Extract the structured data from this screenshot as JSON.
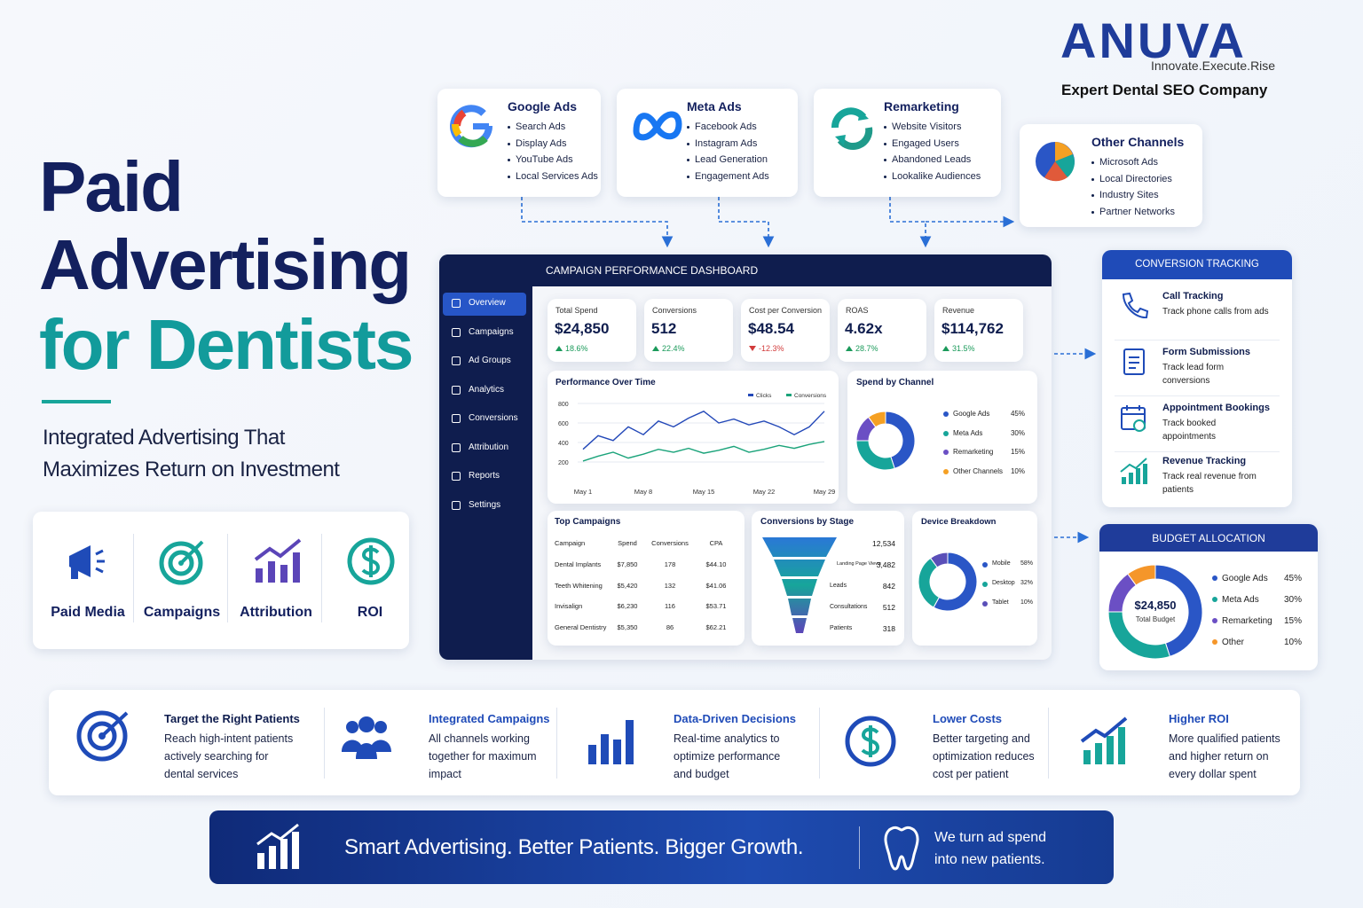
{
  "logo": {
    "brand": "ANUVA",
    "tagline": "Innovate.Execute.Rise",
    "subtitle": "Expert Dental SEO Company"
  },
  "hero": {
    "title": [
      "Paid",
      "Advertising",
      "for Dentists"
    ],
    "subtitle": [
      "Integrated Advertising That",
      "Maximizes Return on Investment"
    ]
  },
  "pillars": [
    "Paid Media",
    "Campaigns",
    "Attribution",
    "ROI"
  ],
  "channels": [
    {
      "title": "Google Ads",
      "items": [
        "Search Ads",
        "Display Ads",
        "YouTube Ads",
        "Local Services Ads"
      ]
    },
    {
      "title": "Meta Ads",
      "items": [
        "Facebook Ads",
        "Instagram Ads",
        "Lead Generation",
        "Engagement Ads"
      ]
    },
    {
      "title": "Remarketing",
      "items": [
        "Website Visitors",
        "Engaged Users",
        "Abandoned Leads",
        "Lookalike Audiences"
      ]
    },
    {
      "title": "Other Channels",
      "items": [
        "Microsoft Ads",
        "Local Directories",
        "Industry Sites",
        "Partner Networks"
      ]
    }
  ],
  "dashboard": {
    "title": "CAMPAIGN PERFORMANCE DASHBOARD",
    "nav": [
      "Overview",
      "Campaigns",
      "Ad Groups",
      "Analytics",
      "Conversions",
      "Attribution",
      "Reports",
      "Settings"
    ],
    "kpis": [
      {
        "label": "Total Spend",
        "value": "$24,850",
        "change": "18.6%"
      },
      {
        "label": "Conversions",
        "value": "512",
        "change": "22.4%"
      },
      {
        "label": "Cost per Conversion",
        "value": "$48.54",
        "change": "-12.3%"
      },
      {
        "label": "ROAS",
        "value": "4.62x",
        "change": "28.7%"
      },
      {
        "label": "Revenue",
        "value": "$114,762",
        "change": "31.5%"
      }
    ],
    "performance": {
      "type": "line",
      "title": "Performance Over Time",
      "categories": [
        "May 1",
        null,
        null,
        null,
        "May 8",
        null,
        null,
        null,
        "May 15",
        null,
        null,
        null,
        "May 22",
        null,
        null,
        null,
        "May 29"
      ],
      "series": [
        {
          "name": "Clicks",
          "color": "#2348b8",
          "values": [
            330,
            470,
            420,
            560,
            480,
            620,
            560,
            650,
            720,
            600,
            640,
            580,
            620,
            560,
            480,
            560,
            720
          ]
        },
        {
          "name": "Conversions",
          "color": "#1aa37a",
          "values": [
            210,
            260,
            300,
            240,
            280,
            330,
            300,
            340,
            290,
            320,
            360,
            300,
            330,
            370,
            340,
            380,
            410
          ]
        }
      ],
      "ylim": [
        0,
        900
      ],
      "yticks": [
        200,
        400,
        600,
        800
      ]
    },
    "spend": {
      "type": "pie",
      "title": "Spend by Channel",
      "labels": [
        "Google Ads",
        "Meta Ads",
        "Remarketing",
        "Other Channels"
      ],
      "values": [
        45,
        30,
        15,
        10
      ],
      "value_labels": [
        "45%",
        "30%",
        "15%",
        "10%"
      ],
      "colors": [
        "#2a56c6",
        "#17a59a",
        "#6b4fc4",
        "#f5a023"
      ]
    },
    "top_campaigns": {
      "title": "Top Campaigns",
      "header": [
        "Campaign",
        "Spend",
        "Conversions",
        "CPA"
      ],
      "rows": [
        [
          "Dental Implants",
          "$7,850",
          "178",
          "$44.10"
        ],
        [
          "Teeth Whitening",
          "$5,420",
          "132",
          "$41.06"
        ],
        [
          "Invisalign",
          "$6,230",
          "116",
          "$53.71"
        ],
        [
          "General Dentistry",
          "$5,350",
          "86",
          "$62.21"
        ]
      ]
    },
    "funnel": {
      "title": "Conversions by Stage",
      "stages": [
        {
          "count": "12,534"
        },
        {
          "label": "Landing Page Views",
          "count": "3,482"
        },
        {
          "label": "Leads",
          "count": "842"
        },
        {
          "label": "Consultations",
          "count": "512"
        },
        {
          "label": "Patients",
          "count": "318"
        }
      ]
    },
    "device": {
      "type": "pie",
      "title": "Device Breakdown",
      "labels": [
        "Mobile",
        "Desktop",
        "Tablet"
      ],
      "values": [
        58,
        32,
        10
      ],
      "value_labels": [
        "58%",
        "32%",
        "10%"
      ],
      "colors": [
        "#2a56c6",
        "#17a59a",
        "#5a4fb8"
      ]
    }
  },
  "conversion_tracking": {
    "title": "CONVERSION TRACKING",
    "items": [
      {
        "title": "Call Tracking",
        "text": "Track phone calls from ads"
      },
      {
        "title": "Form Submissions",
        "text": "Track lead form conversions"
      },
      {
        "title": "Appointment Bookings",
        "text": "Track booked appointments"
      },
      {
        "title": "Revenue Tracking",
        "text": "Track real revenue from patients"
      }
    ]
  },
  "budget": {
    "type": "pie",
    "title": "BUDGET ALLOCATION",
    "total": "$24,850",
    "total_label": "Total Budget",
    "labels": [
      "Google Ads",
      "Meta Ads",
      "Remarketing",
      "Other"
    ],
    "values": [
      45,
      30,
      15,
      10
    ],
    "value_labels": [
      "45%",
      "30%",
      "15%",
      "10%"
    ],
    "colors": [
      "#2a56c6",
      "#17a59a",
      "#6b4fc4",
      "#f5962a"
    ]
  },
  "benefits": [
    {
      "title": "Target the Right Patients",
      "text": "Reach high-intent patients actively searching for dental services"
    },
    {
      "title": "Integrated Campaigns",
      "text": "All channels working together for maximum impact"
    },
    {
      "title": "Data-Driven Decisions",
      "text": "Real-time analytics to optimize performance and budget"
    },
    {
      "title": "Lower Costs",
      "text": "Better targeting and optimization reduces cost per patient"
    },
    {
      "title": "Higher ROI",
      "text": "More qualified patients and higher return on every dollar spent"
    }
  ],
  "banner": {
    "headline": "Smart Advertising. Better Patients. Bigger Growth.",
    "tagline": "We turn ad spend into new patients."
  }
}
